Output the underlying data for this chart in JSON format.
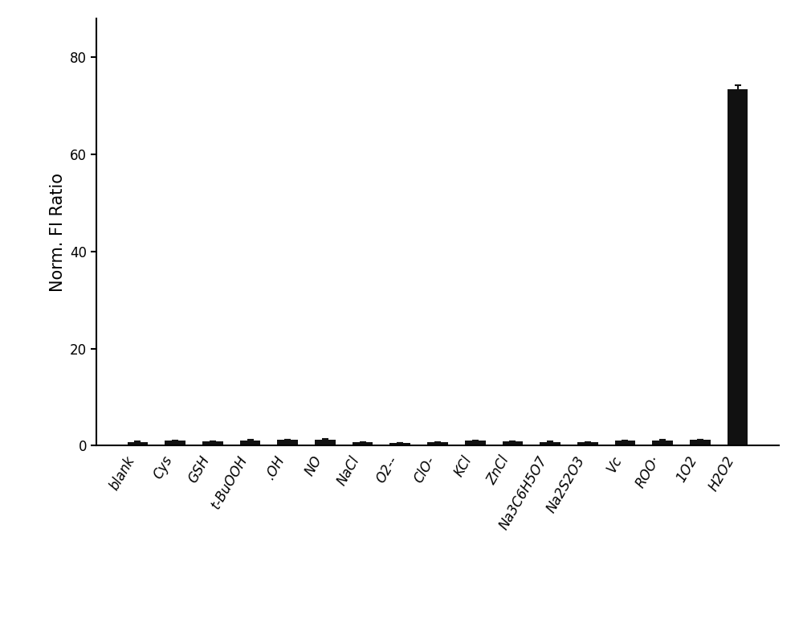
{
  "categories": [
    "blank",
    "Cys",
    "GSH",
    "t-BuOOH",
    ".OH",
    "NO",
    "NaCl",
    "O2--",
    "ClO-",
    "KCl",
    "ZnCl",
    "Na3C6H5O7",
    "Na2S2O3",
    "Vc",
    "ROO·",
    "1O2",
    "H2O2"
  ],
  "values": [
    0.8,
    1.0,
    0.9,
    1.1,
    1.2,
    1.3,
    0.7,
    0.6,
    0.7,
    1.0,
    0.9,
    0.8,
    0.7,
    1.0,
    1.1,
    1.2,
    73.5
  ],
  "errors": [
    0.05,
    0.05,
    0.05,
    0.05,
    0.05,
    0.07,
    0.05,
    0.04,
    0.04,
    0.05,
    0.05,
    0.04,
    0.04,
    0.05,
    0.05,
    0.05,
    0.7
  ],
  "bar_color": "#111111",
  "error_color": "#111111",
  "ylabel": "Norm. FI Ratio",
  "ylim": [
    0,
    88
  ],
  "yticks": [
    0,
    20,
    40,
    60,
    80
  ],
  "background_color": "#ffffff",
  "bar_width": 0.55,
  "ylabel_fontsize": 15,
  "tick_fontsize": 12,
  "xlabel_rotation": 60
}
